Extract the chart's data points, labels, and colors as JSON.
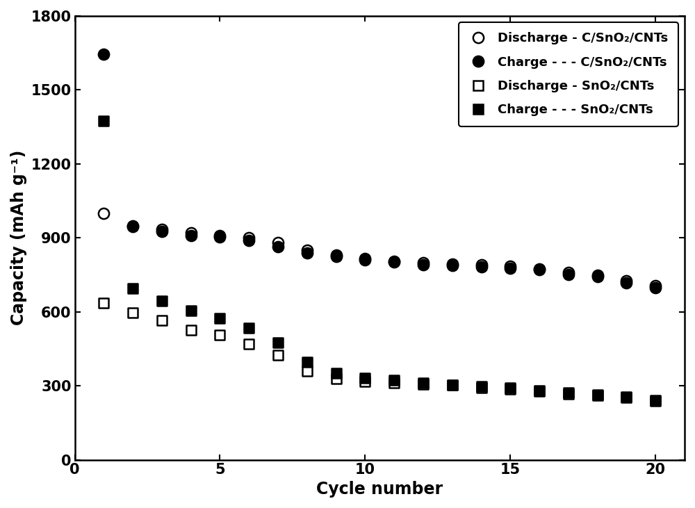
{
  "title": "",
  "xlabel": "Cycle number",
  "ylabel": "Capacity (mAh g⁻¹)",
  "xlim": [
    0,
    21
  ],
  "ylim": [
    0,
    1800
  ],
  "yticks": [
    0,
    300,
    600,
    900,
    1200,
    1500,
    1800
  ],
  "xticks": [
    0,
    5,
    10,
    15,
    20
  ],
  "discharge_CNT_x": [
    1,
    2,
    3,
    4,
    5,
    6,
    7,
    8,
    9,
    10,
    11,
    12,
    13,
    14,
    15,
    16,
    17,
    18,
    19,
    20
  ],
  "discharge_CNT_y": [
    1000,
    950,
    935,
    920,
    910,
    900,
    880,
    850,
    830,
    815,
    805,
    800,
    795,
    790,
    785,
    775,
    760,
    750,
    725,
    705
  ],
  "charge_CNT_x": [
    1,
    2,
    3,
    4,
    5,
    6,
    7,
    8,
    9,
    10,
    11,
    12,
    13,
    14,
    15,
    16,
    17,
    18,
    19,
    20
  ],
  "charge_CNT_y": [
    1645,
    945,
    925,
    910,
    905,
    890,
    865,
    840,
    825,
    812,
    802,
    792,
    787,
    782,
    777,
    772,
    752,
    742,
    718,
    698
  ],
  "discharge_SnO2_x": [
    1,
    2,
    3,
    4,
    5,
    6,
    7,
    8,
    9,
    10,
    11,
    12,
    13,
    14,
    15,
    16,
    17,
    18,
    19,
    20
  ],
  "discharge_SnO2_y": [
    635,
    595,
    565,
    525,
    505,
    470,
    425,
    360,
    330,
    318,
    312,
    307,
    302,
    292,
    287,
    277,
    268,
    262,
    252,
    238
  ],
  "charge_SnO2_x": [
    1,
    2,
    3,
    4,
    5,
    6,
    7,
    8,
    9,
    10,
    11,
    12,
    13,
    14,
    15,
    16,
    17,
    18,
    19,
    20
  ],
  "charge_SnO2_y": [
    1375,
    695,
    645,
    605,
    575,
    535,
    475,
    395,
    350,
    332,
    322,
    312,
    302,
    298,
    292,
    282,
    272,
    265,
    255,
    242
  ],
  "legend_entries": [
    "Discharge - C/SnO₂/CNTs",
    "Charge - - - C/SnO₂/CNTs",
    "Discharge - SnO₂/CNTs",
    "Charge - - - SnO₂/CNTs"
  ],
  "color": "#000000",
  "bg_color": "#ffffff",
  "marker_size_circle": 11,
  "marker_size_square": 10,
  "font_size_label": 17,
  "font_size_tick": 15,
  "font_size_legend": 13
}
